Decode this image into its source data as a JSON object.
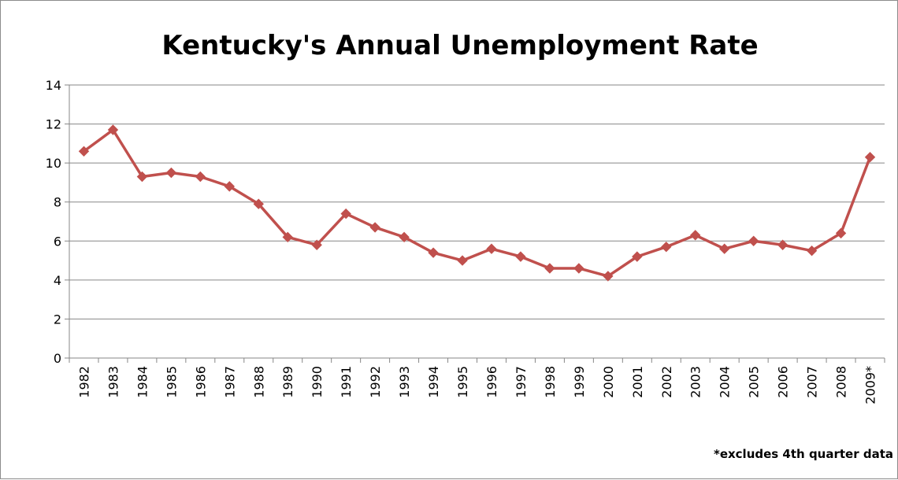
{
  "chart_data": {
    "type": "line",
    "title": "Kentucky's Annual Unemployment Rate",
    "xlabel": "",
    "ylabel": "",
    "categories": [
      "1982",
      "1983",
      "1984",
      "1985",
      "1986",
      "1987",
      "1988",
      "1989",
      "1990",
      "1991",
      "1992",
      "1993",
      "1994",
      "1995",
      "1996",
      "1997",
      "1998",
      "1999",
      "2000",
      "2001",
      "2002",
      "2003",
      "2004",
      "2005",
      "2006",
      "2007",
      "2008",
      "2009*"
    ],
    "series": [
      {
        "values": [
          10.6,
          11.7,
          9.3,
          9.5,
          9.3,
          8.8,
          7.9,
          6.2,
          5.8,
          7.4,
          6.7,
          6.2,
          5.4,
          5.0,
          5.6,
          5.2,
          4.6,
          4.6,
          4.2,
          5.2,
          5.7,
          6.3,
          5.6,
          6.0,
          5.8,
          5.5,
          6.4,
          10.3
        ],
        "color": "#c0504d",
        "marker": "diamond"
      }
    ],
    "ylim": [
      0,
      14
    ],
    "yticks": [
      "0",
      "2",
      "4",
      "6",
      "8",
      "10",
      "12",
      "14"
    ],
    "grid": "horizontal",
    "legend": "none",
    "footnote": "*excludes 4th quarter data"
  }
}
